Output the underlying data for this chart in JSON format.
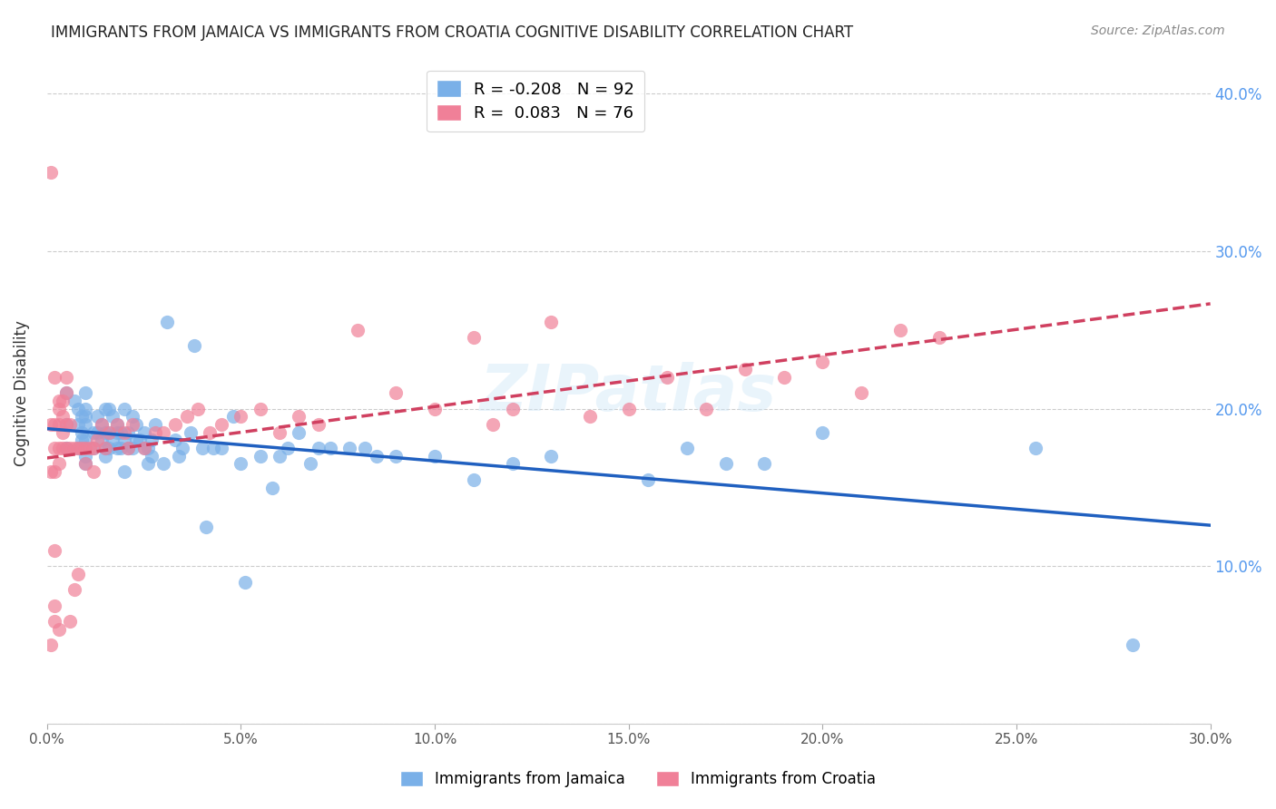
{
  "title": "IMMIGRANTS FROM JAMAICA VS IMMIGRANTS FROM CROATIA COGNITIVE DISABILITY CORRELATION CHART",
  "source": "Source: ZipAtlas.com",
  "xlabel_ticks": [
    "0.0%",
    "5.0%",
    "10.0%",
    "15.0%",
    "20.0%",
    "25.0%",
    "30.0%"
  ],
  "ylabel_ticks": [
    "0.0%",
    "10.0%",
    "20.0%",
    "30.0%",
    "40.0%"
  ],
  "xlim": [
    0.0,
    0.3
  ],
  "ylim": [
    0.0,
    0.42
  ],
  "ylabel": "Cognitive Disability",
  "legend_entries": [
    {
      "label": "R = -0.208   N = 92",
      "color": "#a8c8f0"
    },
    {
      "label": "R =  0.083   N = 76",
      "color": "#f0a0b8"
    }
  ],
  "jamaica_color": "#7ab0e8",
  "croatia_color": "#f08098",
  "jamaica_line_color": "#2060c0",
  "croatia_line_color": "#d04060",
  "watermark": "ZIPatlas",
  "jamaica_R": -0.208,
  "jamaica_N": 92,
  "croatia_R": 0.083,
  "croatia_N": 76,
  "jamaica_scatter": {
    "x": [
      0.005,
      0.005,
      0.005,
      0.007,
      0.008,
      0.008,
      0.008,
      0.009,
      0.009,
      0.009,
      0.01,
      0.01,
      0.01,
      0.01,
      0.01,
      0.01,
      0.01,
      0.01,
      0.012,
      0.012,
      0.013,
      0.013,
      0.014,
      0.014,
      0.015,
      0.015,
      0.015,
      0.015,
      0.016,
      0.016,
      0.016,
      0.017,
      0.017,
      0.018,
      0.018,
      0.018,
      0.019,
      0.019,
      0.02,
      0.02,
      0.02,
      0.021,
      0.021,
      0.022,
      0.022,
      0.023,
      0.023,
      0.024,
      0.025,
      0.025,
      0.026,
      0.026,
      0.027,
      0.027,
      0.028,
      0.03,
      0.031,
      0.033,
      0.034,
      0.035,
      0.037,
      0.038,
      0.04,
      0.041,
      0.043,
      0.045,
      0.048,
      0.05,
      0.051,
      0.055,
      0.058,
      0.06,
      0.062,
      0.065,
      0.068,
      0.07,
      0.073,
      0.078,
      0.082,
      0.085,
      0.09,
      0.1,
      0.11,
      0.12,
      0.13,
      0.155,
      0.165,
      0.175,
      0.185,
      0.2,
      0.255,
      0.28
    ],
    "y": [
      0.19,
      0.21,
      0.175,
      0.205,
      0.19,
      0.2,
      0.175,
      0.185,
      0.195,
      0.18,
      0.19,
      0.17,
      0.18,
      0.195,
      0.2,
      0.175,
      0.165,
      0.21,
      0.185,
      0.175,
      0.195,
      0.185,
      0.18,
      0.19,
      0.17,
      0.185,
      0.2,
      0.175,
      0.185,
      0.175,
      0.2,
      0.195,
      0.18,
      0.185,
      0.175,
      0.19,
      0.175,
      0.185,
      0.2,
      0.18,
      0.16,
      0.185,
      0.175,
      0.175,
      0.195,
      0.18,
      0.19,
      0.18,
      0.175,
      0.185,
      0.165,
      0.175,
      0.18,
      0.17,
      0.19,
      0.165,
      0.255,
      0.18,
      0.17,
      0.175,
      0.185,
      0.24,
      0.175,
      0.125,
      0.175,
      0.175,
      0.195,
      0.165,
      0.09,
      0.17,
      0.15,
      0.17,
      0.175,
      0.185,
      0.165,
      0.175,
      0.175,
      0.175,
      0.175,
      0.17,
      0.17,
      0.17,
      0.155,
      0.165,
      0.17,
      0.155,
      0.175,
      0.165,
      0.165,
      0.185,
      0.175,
      0.05
    ]
  },
  "croatia_scatter": {
    "x": [
      0.001,
      0.001,
      0.001,
      0.001,
      0.002,
      0.002,
      0.002,
      0.002,
      0.002,
      0.002,
      0.002,
      0.003,
      0.003,
      0.003,
      0.003,
      0.003,
      0.003,
      0.004,
      0.004,
      0.004,
      0.004,
      0.005,
      0.005,
      0.005,
      0.005,
      0.006,
      0.006,
      0.006,
      0.007,
      0.007,
      0.008,
      0.008,
      0.009,
      0.01,
      0.01,
      0.011,
      0.012,
      0.012,
      0.013,
      0.014,
      0.015,
      0.016,
      0.018,
      0.02,
      0.021,
      0.022,
      0.025,
      0.028,
      0.03,
      0.033,
      0.036,
      0.039,
      0.042,
      0.045,
      0.05,
      0.055,
      0.06,
      0.065,
      0.07,
      0.08,
      0.09,
      0.1,
      0.11,
      0.115,
      0.12,
      0.13,
      0.14,
      0.15,
      0.16,
      0.17,
      0.18,
      0.19,
      0.2,
      0.21,
      0.22,
      0.23
    ],
    "y": [
      0.35,
      0.19,
      0.16,
      0.05,
      0.175,
      0.22,
      0.19,
      0.16,
      0.11,
      0.075,
      0.065,
      0.205,
      0.2,
      0.19,
      0.175,
      0.165,
      0.06,
      0.205,
      0.195,
      0.185,
      0.175,
      0.22,
      0.21,
      0.19,
      0.175,
      0.19,
      0.175,
      0.065,
      0.175,
      0.085,
      0.175,
      0.095,
      0.175,
      0.175,
      0.165,
      0.175,
      0.175,
      0.16,
      0.18,
      0.19,
      0.175,
      0.185,
      0.19,
      0.185,
      0.175,
      0.19,
      0.175,
      0.185,
      0.185,
      0.19,
      0.195,
      0.2,
      0.185,
      0.19,
      0.195,
      0.2,
      0.185,
      0.195,
      0.19,
      0.25,
      0.21,
      0.2,
      0.245,
      0.19,
      0.2,
      0.255,
      0.195,
      0.2,
      0.22,
      0.2,
      0.225,
      0.22,
      0.23,
      0.21,
      0.25,
      0.245
    ]
  }
}
